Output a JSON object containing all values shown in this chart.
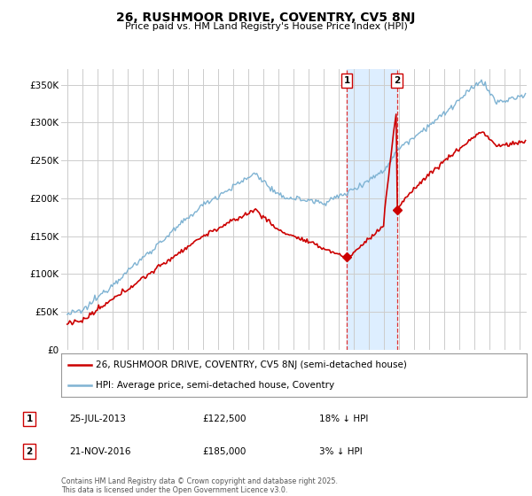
{
  "title": "26, RUSHMOOR DRIVE, COVENTRY, CV5 8NJ",
  "subtitle": "Price paid vs. HM Land Registry's House Price Index (HPI)",
  "ylim": [
    0,
    370000
  ],
  "yticks": [
    0,
    50000,
    100000,
    150000,
    200000,
    250000,
    300000,
    350000
  ],
  "purchase1": {
    "date": "25-JUL-2013",
    "price": 122500,
    "label": "1",
    "hpi_diff": "18% ↓ HPI",
    "x_year": 2013.56
  },
  "purchase2": {
    "date": "21-NOV-2016",
    "price": 185000,
    "label": "2",
    "hpi_diff": "3% ↓ HPI",
    "x_year": 2016.89
  },
  "legend_line1": "26, RUSHMOOR DRIVE, COVENTRY, CV5 8NJ (semi-detached house)",
  "legend_line2": "HPI: Average price, semi-detached house, Coventry",
  "footer": "Contains HM Land Registry data © Crown copyright and database right 2025.\nThis data is licensed under the Open Government Licence v3.0.",
  "red_color": "#cc0000",
  "blue_color": "#7fb3d3",
  "highlight_color": "#ddeeff",
  "background_color": "#ffffff",
  "grid_color": "#cccccc",
  "xlim_left": 1994.6,
  "xlim_right": 2025.5
}
